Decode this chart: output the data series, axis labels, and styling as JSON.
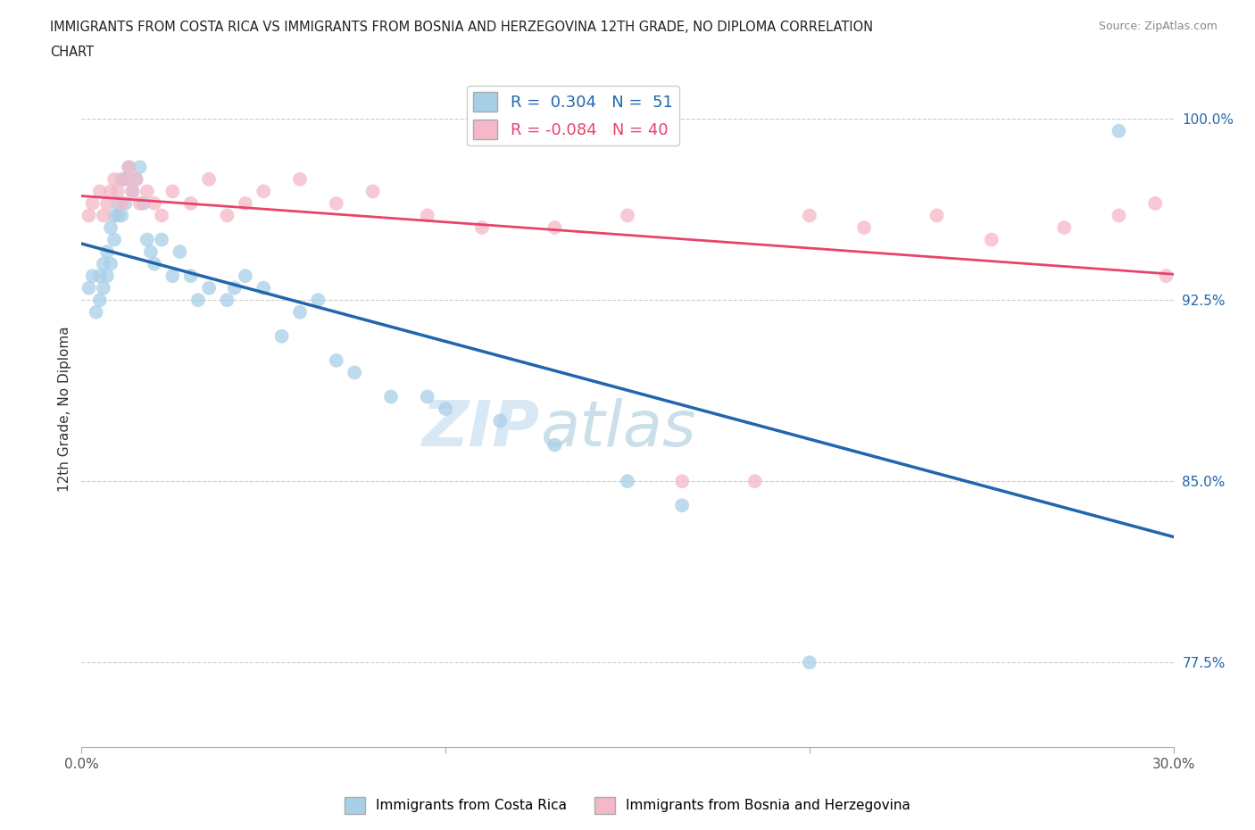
{
  "title_line1": "IMMIGRANTS FROM COSTA RICA VS IMMIGRANTS FROM BOSNIA AND HERZEGOVINA 12TH GRADE, NO DIPLOMA CORRELATION",
  "title_line2": "CHART",
  "source_text": "Source: ZipAtlas.com",
  "ylabel": "12th Grade, No Diploma",
  "xlim": [
    0.0,
    0.3
  ],
  "ylim": [
    0.74,
    1.02
  ],
  "yticks": [
    0.775,
    0.85,
    0.925,
    1.0
  ],
  "ytick_labels": [
    "77.5%",
    "85.0%",
    "92.5%",
    "100.0%"
  ],
  "xticks": [
    0.0,
    0.1,
    0.2,
    0.3
  ],
  "xtick_labels": [
    "0.0%",
    "",
    "",
    "30.0%"
  ],
  "blue_R": 0.304,
  "blue_N": 51,
  "pink_R": -0.084,
  "pink_N": 40,
  "blue_color": "#a8cfe8",
  "pink_color": "#f4b8c8",
  "blue_line_color": "#2166ac",
  "pink_line_color": "#e8436a",
  "legend_label_blue": "Immigrants from Costa Rica",
  "legend_label_pink": "Immigrants from Bosnia and Herzegovina",
  "blue_scatter_x": [
    0.002,
    0.003,
    0.004,
    0.005,
    0.005,
    0.006,
    0.006,
    0.007,
    0.007,
    0.008,
    0.008,
    0.009,
    0.009,
    0.01,
    0.01,
    0.011,
    0.011,
    0.012,
    0.012,
    0.013,
    0.014,
    0.015,
    0.016,
    0.017,
    0.018,
    0.019,
    0.02,
    0.022,
    0.025,
    0.027,
    0.03,
    0.032,
    0.035,
    0.04,
    0.042,
    0.045,
    0.05,
    0.055,
    0.06,
    0.065,
    0.07,
    0.075,
    0.085,
    0.095,
    0.1,
    0.115,
    0.13,
    0.15,
    0.165,
    0.2,
    0.285
  ],
  "blue_scatter_y": [
    0.93,
    0.935,
    0.92,
    0.935,
    0.925,
    0.94,
    0.93,
    0.945,
    0.935,
    0.955,
    0.94,
    0.95,
    0.96,
    0.965,
    0.96,
    0.975,
    0.96,
    0.975,
    0.965,
    0.98,
    0.97,
    0.975,
    0.98,
    0.965,
    0.95,
    0.945,
    0.94,
    0.95,
    0.935,
    0.945,
    0.935,
    0.925,
    0.93,
    0.925,
    0.93,
    0.935,
    0.93,
    0.91,
    0.92,
    0.925,
    0.9,
    0.895,
    0.885,
    0.885,
    0.88,
    0.875,
    0.865,
    0.85,
    0.84,
    0.775,
    0.995
  ],
  "pink_scatter_x": [
    0.002,
    0.003,
    0.005,
    0.006,
    0.007,
    0.008,
    0.009,
    0.01,
    0.011,
    0.012,
    0.013,
    0.014,
    0.015,
    0.016,
    0.018,
    0.02,
    0.022,
    0.025,
    0.03,
    0.035,
    0.04,
    0.045,
    0.05,
    0.06,
    0.07,
    0.08,
    0.095,
    0.11,
    0.13,
    0.15,
    0.165,
    0.185,
    0.2,
    0.215,
    0.235,
    0.25,
    0.27,
    0.285,
    0.295,
    0.298
  ],
  "pink_scatter_y": [
    0.96,
    0.965,
    0.97,
    0.96,
    0.965,
    0.97,
    0.975,
    0.97,
    0.965,
    0.975,
    0.98,
    0.97,
    0.975,
    0.965,
    0.97,
    0.965,
    0.96,
    0.97,
    0.965,
    0.975,
    0.96,
    0.965,
    0.97,
    0.975,
    0.965,
    0.97,
    0.96,
    0.955,
    0.955,
    0.96,
    0.85,
    0.85,
    0.96,
    0.955,
    0.96,
    0.95,
    0.955,
    0.96,
    0.965,
    0.935
  ]
}
